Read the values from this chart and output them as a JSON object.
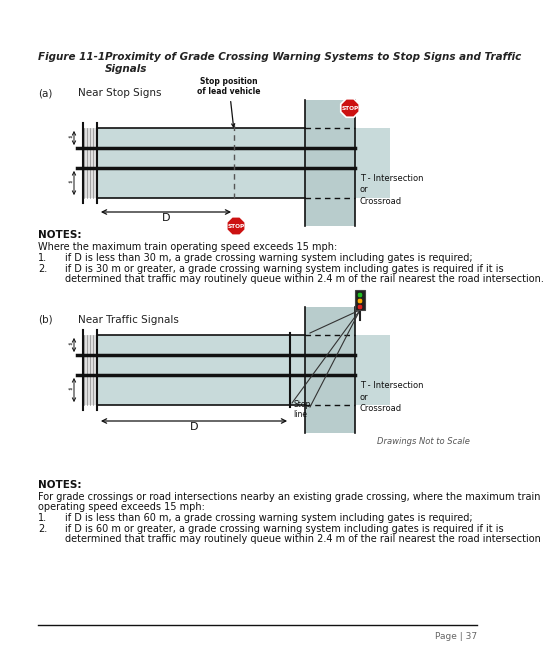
{
  "bg_color": "#ffffff",
  "title_label": "Figure 11-1",
  "title_italic": "Proximity of Grade Crossing Warning Systems to Stop Signs and Traffic",
  "title_italic2": "Signals",
  "road_color": "#c8dada",
  "rail_hatch_color": "#d0d0d0",
  "intersect_color": "#b8cccc",
  "stop_red": "#cc1111",
  "notes_bold_a": "NOTES:",
  "notes_intro_a": "Where the maximum train operating speed exceeds 15 mph:",
  "notes1_a": "if D is less than 30 m, a grade crossing warning system including gates is required;",
  "notes2_a1": "if D is 30 m or greater, a grade crossing warning system including gates is required if it is",
  "notes2_a2": "determined that traffic may routinely queue within 2.4 m of the rail nearest the road intersection.",
  "notes_bold_b": "NOTES:",
  "notes_intro_b1": "For grade crossings or road intersections nearby an existing grade crossing, where the maximum train",
  "notes_intro_b2": "operating speed exceeds 15 mph:",
  "notes1_b": "if D is less than 60 m, a grade crossing warning system including gates is required;",
  "notes2_b1": "if D is 60 m or greater, a grade crossing warning system including gates is required if it is",
  "notes2_b2": "determined that traffic may routinely queue within 2.4 m of the rail nearest the road intersection",
  "drawings_label": "Drawings Not to Scale",
  "page_label": "Page | 37"
}
